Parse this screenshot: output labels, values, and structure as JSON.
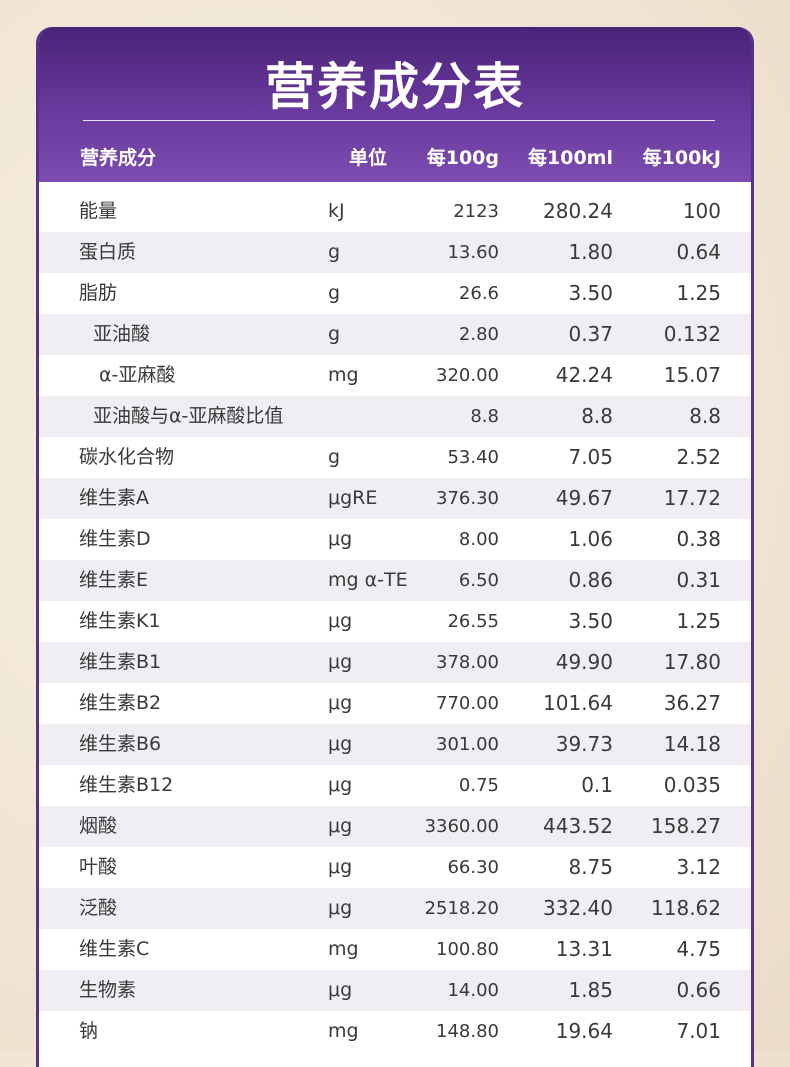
{
  "title": "营养成分表",
  "columns": {
    "name": "营养成分",
    "unit": "单位",
    "per100g": "每100g",
    "per100ml": "每100ml",
    "per100kj": "每100kJ"
  },
  "rows": [
    {
      "name": "能量",
      "unit": "kJ",
      "per100g": "2123",
      "per100ml": "280.24",
      "per100kj": "100",
      "indent": 0
    },
    {
      "name": "蛋白质",
      "unit": "g",
      "per100g": "13.60",
      "per100ml": "1.80",
      "per100kj": "0.64",
      "indent": 0
    },
    {
      "name": "脂肪",
      "unit": "g",
      "per100g": "26.6",
      "per100ml": "3.50",
      "per100kj": "1.25",
      "indent": 0
    },
    {
      "name": "亚油酸",
      "unit": "g",
      "per100g": "2.80",
      "per100ml": "0.37",
      "per100kj": "0.132",
      "indent": 1
    },
    {
      "name": "α-亚麻酸",
      "unit": "mg",
      "per100g": "320.00",
      "per100ml": "42.24",
      "per100kj": "15.07",
      "indent": 2
    },
    {
      "name": "亚油酸与α-亚麻酸比值",
      "unit": "",
      "per100g": "8.8",
      "per100ml": "8.8",
      "per100kj": "8.8",
      "indent": 1
    },
    {
      "name": "碳水化合物",
      "unit": "g",
      "per100g": "53.40",
      "per100ml": "7.05",
      "per100kj": "2.52",
      "indent": 0
    },
    {
      "name": "维生素A",
      "unit": "μgRE",
      "per100g": "376.30",
      "per100ml": "49.67",
      "per100kj": "17.72",
      "indent": 0
    },
    {
      "name": "维生素D",
      "unit": "μg",
      "per100g": "8.00",
      "per100ml": "1.06",
      "per100kj": "0.38",
      "indent": 0
    },
    {
      "name": "维生素E",
      "unit": "mg α-TE",
      "per100g": "6.50",
      "per100ml": "0.86",
      "per100kj": "0.31",
      "indent": 0
    },
    {
      "name": "维生素K1",
      "unit": "μg",
      "per100g": "26.55",
      "per100ml": "3.50",
      "per100kj": "1.25",
      "indent": 0
    },
    {
      "name": "维生素B1",
      "unit": "μg",
      "per100g": "378.00",
      "per100ml": "49.90",
      "per100kj": "17.80",
      "indent": 0
    },
    {
      "name": "维生素B2",
      "unit": "μg",
      "per100g": "770.00",
      "per100ml": "101.64",
      "per100kj": "36.27",
      "indent": 0
    },
    {
      "name": "维生素B6",
      "unit": "μg",
      "per100g": "301.00",
      "per100ml": "39.73",
      "per100kj": "14.18",
      "indent": 0
    },
    {
      "name": "维生素B12",
      "unit": "μg",
      "per100g": "0.75",
      "per100ml": "0.1",
      "per100kj": "0.035",
      "indent": 0
    },
    {
      "name": "烟酸",
      "unit": "μg",
      "per100g": "3360.00",
      "per100ml": "443.52",
      "per100kj": "158.27",
      "indent": 0
    },
    {
      "name": "叶酸",
      "unit": "μg",
      "per100g": "66.30",
      "per100ml": "8.75",
      "per100kj": "3.12",
      "indent": 0
    },
    {
      "name": "泛酸",
      "unit": "μg",
      "per100g": "2518.20",
      "per100ml": "332.40",
      "per100kj": "118.62",
      "indent": 0
    },
    {
      "name": "维生素C",
      "unit": "mg",
      "per100g": "100.80",
      "per100ml": "13.31",
      "per100kj": "4.75",
      "indent": 0
    },
    {
      "name": "生物素",
      "unit": "μg",
      "per100g": "14.00",
      "per100ml": "1.85",
      "per100kj": "0.66",
      "indent": 0
    },
    {
      "name": "钠",
      "unit": "mg",
      "per100g": "148.80",
      "per100ml": "19.64",
      "per100kj": "7.01",
      "indent": 0
    }
  ]
}
